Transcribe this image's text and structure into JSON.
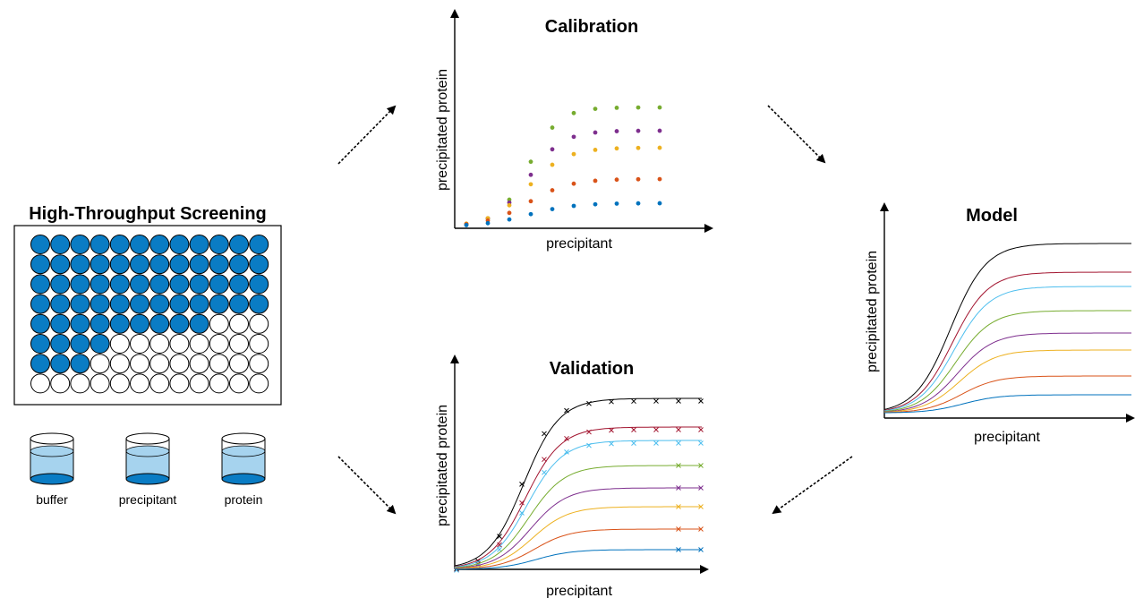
{
  "screening": {
    "title": "High-Throughput Screening",
    "reagents": [
      "buffer",
      "precipitant",
      "protein"
    ]
  },
  "calibration": {
    "title": "Calibration",
    "x_label": "precipitant",
    "y_label": "precipitated protein"
  },
  "model": {
    "title": "Model",
    "x_label": "precipitant",
    "y_label": "precipitated protein"
  },
  "validation": {
    "title": "Validation",
    "x_label": "precipitant",
    "y_label": "precipitated protein"
  }
}
